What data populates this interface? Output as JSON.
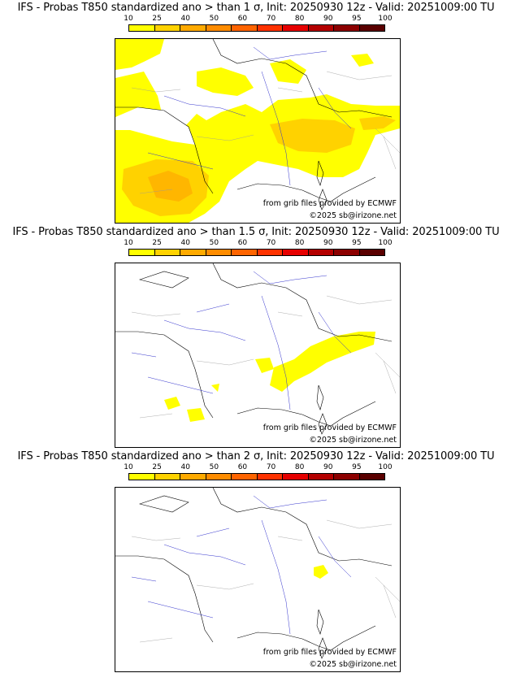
{
  "panels": [
    {
      "title": "IFS - Probas T850  standardized ano > than 1 σ, Init: 20250930 12z - Valid: 20251009:00 TU",
      "credit_source": "from grib files provided by ECMWF",
      "credit_copyright": "©2025 sb@irizone.net"
    },
    {
      "title": "IFS - Probas T850  standardized ano > than 1.5 σ, Init: 20250930 12z - Valid: 20251009:00 TU",
      "credit_source": "from grib files provided by ECMWF",
      "credit_copyright": "©2025 sb@irizone.net"
    },
    {
      "title": "IFS - Probas T850  standardized ano > than 2 σ, Init: 20250930 12z - Valid: 20251009:00 TU",
      "credit_source": "from grib files provided by ECMWF",
      "credit_copyright": "©2025 sb@irizone.net"
    }
  ],
  "legend": {
    "ticks": [
      "10",
      "25",
      "40",
      "50",
      "60",
      "70",
      "80",
      "90",
      "95",
      "100"
    ],
    "colors": [
      "#ffff00",
      "#ffd200",
      "#ffaa00",
      "#ff8c00",
      "#ff6400",
      "#ff3200",
      "#e60000",
      "#b40000",
      "#8c0000",
      "#5a0000"
    ]
  }
}
